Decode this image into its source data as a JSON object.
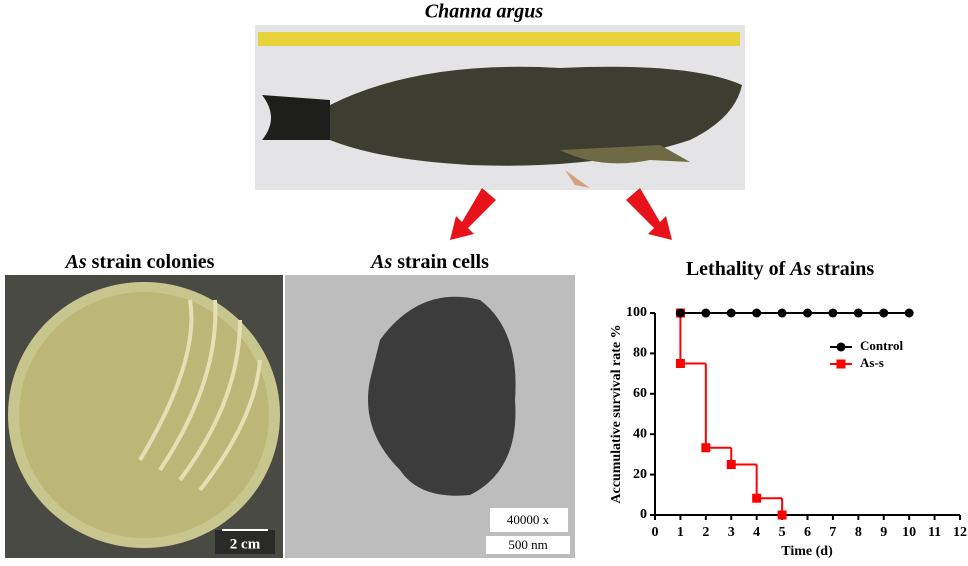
{
  "header": {
    "title": "Channa argus"
  },
  "panels": [
    {
      "title_parts": [
        "As",
        " strain colonies"
      ],
      "scale_bar": "2 cm"
    },
    {
      "title_parts": [
        "As",
        " strain cells"
      ],
      "magnification": "40000 x",
      "scale_bar": "500 nm"
    },
    {
      "title_parts": [
        "Lethality of ",
        "As",
        " strains"
      ]
    }
  ],
  "chart_data": {
    "type": "step",
    "xlabel": "Time (d)",
    "ylabel": "Accumulative survival rate %",
    "xlim": [
      0,
      12
    ],
    "xticks": [
      0,
      1,
      2,
      3,
      4,
      5,
      6,
      7,
      8,
      9,
      10,
      11,
      12
    ],
    "ylim": [
      0,
      100
    ],
    "yticks": [
      0,
      20,
      40,
      60,
      80,
      100
    ],
    "legend": "upper right",
    "series": [
      {
        "name": "Control",
        "color": "#000000",
        "marker": "circle",
        "x": [
          1,
          2,
          3,
          4,
          5,
          6,
          7,
          8,
          9,
          10
        ],
        "values": [
          100,
          100,
          100,
          100,
          100,
          100,
          100,
          100,
          100,
          100
        ]
      },
      {
        "name": "As-s",
        "color": "#ff0000",
        "marker": "square",
        "x": [
          1,
          1,
          2,
          3,
          4,
          5
        ],
        "values": [
          100,
          75,
          33.3,
          25,
          8.3,
          0
        ]
      }
    ]
  }
}
